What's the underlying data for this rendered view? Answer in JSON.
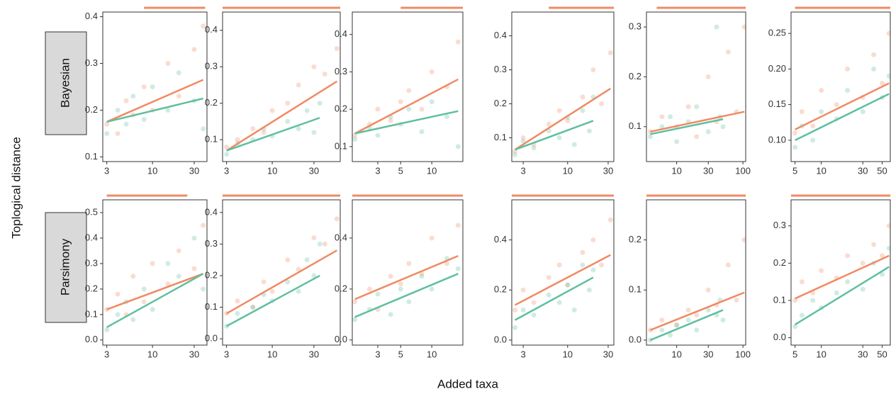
{
  "y_label": "Toplogical distance",
  "x_label": "Added taxa",
  "row_labels": [
    "Bayesian",
    "Parsimony"
  ],
  "chart_data": [
    {
      "type": "scatter",
      "log_x": true,
      "xlim": [
        2.7,
        42
      ],
      "ylim": [
        0.09,
        0.41
      ],
      "xticks": [
        3,
        10,
        30
      ],
      "yticks": [
        0.1,
        0.2,
        0.3,
        0.4
      ],
      "signif_range": [
        8,
        40
      ],
      "signif_color": "#f08a64",
      "series": [
        {
          "color": "#f08a64",
          "x": [
            3,
            4,
            5,
            6,
            8,
            10,
            15,
            20,
            30,
            38
          ],
          "values": [
            0.17,
            0.15,
            0.22,
            0.19,
            0.25,
            0.2,
            0.3,
            0.23,
            0.33,
            0.38
          ],
          "fit_x": [
            3,
            38
          ],
          "fit_values": [
            0.175,
            0.265
          ]
        },
        {
          "color": "#5fbf9f",
          "x": [
            3,
            4,
            5,
            6,
            8,
            10,
            15,
            20,
            30,
            38
          ],
          "values": [
            0.15,
            0.2,
            0.17,
            0.23,
            0.18,
            0.25,
            0.2,
            0.28,
            0.22,
            0.16
          ],
          "fit_x": [
            3,
            38
          ],
          "fit_values": [
            0.175,
            0.225
          ]
        }
      ]
    },
    {
      "type": "scatter",
      "log_x": true,
      "xlim": [
        2.7,
        60
      ],
      "ylim": [
        0.04,
        0.45
      ],
      "xticks": [
        3,
        10,
        30
      ],
      "yticks": [
        0.1,
        0.2,
        0.3,
        0.4
      ],
      "signif_range": [
        2.7,
        60
      ],
      "signif_color": "#f08a64",
      "series": [
        {
          "color": "#f08a64",
          "x": [
            3,
            4,
            6,
            8,
            10,
            15,
            20,
            30,
            40,
            55
          ],
          "values": [
            0.08,
            0.1,
            0.13,
            0.12,
            0.18,
            0.2,
            0.25,
            0.3,
            0.28,
            0.35
          ],
          "fit_x": [
            3,
            55
          ],
          "fit_values": [
            0.07,
            0.26
          ]
        },
        {
          "color": "#5fbf9f",
          "x": [
            3,
            4,
            6,
            8,
            10,
            15,
            20,
            25,
            30,
            35
          ],
          "values": [
            0.06,
            0.09,
            0.1,
            0.13,
            0.11,
            0.15,
            0.13,
            0.18,
            0.12,
            0.2
          ],
          "fit_x": [
            3,
            35
          ],
          "fit_values": [
            0.07,
            0.16
          ]
        }
      ]
    },
    {
      "type": "scatter",
      "log_x": true,
      "xlim": [
        1.7,
        20
      ],
      "ylim": [
        0.06,
        0.46
      ],
      "xticks": [
        3,
        5,
        10
      ],
      "yticks": [
        0.1,
        0.2,
        0.3,
        0.4
      ],
      "signif_range": [
        5,
        20
      ],
      "signif_color": "#f08a64",
      "series": [
        {
          "color": "#f08a64",
          "x": [
            1.8,
            2.5,
            3,
            4,
            5,
            6,
            8,
            10,
            14,
            18
          ],
          "values": [
            0.13,
            0.16,
            0.2,
            0.17,
            0.22,
            0.25,
            0.2,
            0.3,
            0.26,
            0.38
          ],
          "fit_x": [
            1.8,
            18
          ],
          "fit_values": [
            0.135,
            0.28
          ]
        },
        {
          "color": "#5fbf9f",
          "x": [
            1.8,
            2.5,
            3,
            4,
            5,
            6,
            8,
            10,
            14,
            18
          ],
          "values": [
            0.12,
            0.15,
            0.13,
            0.18,
            0.16,
            0.2,
            0.14,
            0.22,
            0.18,
            0.1
          ],
          "fit_x": [
            1.8,
            18
          ],
          "fit_values": [
            0.135,
            0.195
          ]
        }
      ]
    },
    {
      "type": "scatter",
      "log_x": true,
      "xlim": [
        2.2,
        35
      ],
      "ylim": [
        0.03,
        0.47
      ],
      "xticks": [
        3,
        10,
        30
      ],
      "yticks": [
        0.1,
        0.2,
        0.3,
        0.4
      ],
      "signif_range": [
        6,
        35
      ],
      "signif_color": "#f08a64",
      "series": [
        {
          "color": "#f08a64",
          "x": [
            2.4,
            3,
            4,
            6,
            8,
            10,
            15,
            20,
            25,
            32
          ],
          "values": [
            0.06,
            0.1,
            0.08,
            0.14,
            0.18,
            0.15,
            0.22,
            0.3,
            0.2,
            0.35
          ],
          "fit_x": [
            2.4,
            32
          ],
          "fit_values": [
            0.065,
            0.245
          ]
        },
        {
          "color": "#5fbf9f",
          "x": [
            2.4,
            3,
            4,
            6,
            8,
            10,
            12,
            15,
            18,
            20
          ],
          "values": [
            0.05,
            0.09,
            0.07,
            0.12,
            0.1,
            0.16,
            0.08,
            0.18,
            0.12,
            0.22
          ],
          "fit_x": [
            2.4,
            20
          ],
          "fit_values": [
            0.065,
            0.15
          ]
        }
      ]
    },
    {
      "type": "scatter",
      "log_x": true,
      "xlim": [
        3.5,
        110
      ],
      "ylim": [
        0.03,
        0.33
      ],
      "xticks": [
        10,
        30,
        100
      ],
      "yticks": [
        0.1,
        0.2,
        0.3
      ],
      "signif_range": [
        5,
        110
      ],
      "signif_color": "#f08a64",
      "series": [
        {
          "color": "#f08a64",
          "x": [
            4,
            6,
            10,
            15,
            20,
            30,
            40,
            60,
            80,
            105
          ],
          "values": [
            0.09,
            0.12,
            0.1,
            0.14,
            0.08,
            0.2,
            0.11,
            0.25,
            0.13,
            0.3
          ],
          "fit_x": [
            4,
            105
          ],
          "fit_values": [
            0.09,
            0.13
          ]
        },
        {
          "color": "#5fbf9f",
          "x": [
            4,
            6,
            8,
            10,
            15,
            20,
            30,
            40,
            45,
            50
          ],
          "values": [
            0.08,
            0.1,
            0.12,
            0.07,
            0.11,
            0.14,
            0.09,
            0.3,
            0.12,
            0.1
          ],
          "fit_x": [
            4,
            50
          ],
          "fit_values": [
            0.085,
            0.115
          ]
        }
      ]
    },
    {
      "type": "scatter",
      "log_x": true,
      "xlim": [
        4.5,
        62
      ],
      "ylim": [
        0.07,
        0.28
      ],
      "xticks": [
        5,
        10,
        30,
        50
      ],
      "yticks": [
        {
          "value": 0.1,
          "label": "0.10"
        },
        0.15,
        {
          "value": 0.2,
          "label": "0.20"
        },
        0.25
      ],
      "signif_range": [
        5,
        62
      ],
      "signif_color": "#f08a64",
      "series": [
        {
          "color": "#f08a64",
          "x": [
            5,
            6,
            8,
            10,
            15,
            20,
            30,
            40,
            50,
            60
          ],
          "values": [
            0.11,
            0.14,
            0.12,
            0.17,
            0.15,
            0.2,
            0.16,
            0.22,
            0.18,
            0.25
          ],
          "fit_x": [
            5,
            60
          ],
          "fit_values": [
            0.115,
            0.18
          ]
        },
        {
          "color": "#5fbf9f",
          "x": [
            5,
            6,
            8,
            10,
            15,
            20,
            30,
            40,
            50,
            60
          ],
          "values": [
            0.09,
            0.12,
            0.1,
            0.14,
            0.13,
            0.17,
            0.14,
            0.2,
            0.16,
            0.19
          ],
          "fit_x": [
            5,
            60
          ],
          "fit_values": [
            0.1,
            0.165
          ]
        }
      ]
    },
    {
      "type": "scatter",
      "log_x": true,
      "xlim": [
        2.7,
        42
      ],
      "ylim": [
        -0.02,
        0.55
      ],
      "xticks": [
        3,
        10,
        30
      ],
      "yticks": [
        {
          "value": 0,
          "label": "0.0"
        },
        0.1,
        0.2,
        0.3,
        0.4,
        0.5
      ],
      "signif_range": [
        3,
        25
      ],
      "signif_color": "#f08a64",
      "series": [
        {
          "color": "#f08a64",
          "x": [
            3,
            4,
            5,
            6,
            8,
            10,
            15,
            20,
            30,
            38
          ],
          "values": [
            0.12,
            0.18,
            0.1,
            0.25,
            0.15,
            0.3,
            0.22,
            0.35,
            0.28,
            0.45
          ],
          "fit_x": [
            3,
            38
          ],
          "fit_values": [
            0.12,
            0.26
          ]
        },
        {
          "color": "#5fbf9f",
          "x": [
            3,
            4,
            5,
            6,
            8,
            10,
            15,
            20,
            30,
            38
          ],
          "values": [
            0.04,
            0.1,
            0.15,
            0.08,
            0.2,
            0.12,
            0.3,
            0.25,
            0.4,
            0.2
          ],
          "fit_x": [
            3,
            38
          ],
          "fit_values": [
            0.05,
            0.26
          ]
        }
      ]
    },
    {
      "type": "scatter",
      "log_x": true,
      "xlim": [
        2.7,
        60
      ],
      "ylim": [
        -0.02,
        0.44
      ],
      "xticks": [
        3,
        10,
        30
      ],
      "yticks": [
        {
          "value": 0,
          "label": "0.0"
        },
        0.1,
        0.2,
        0.3,
        0.4
      ],
      "signif_range": [
        2.7,
        60
      ],
      "signif_color": "#f08a64",
      "series": [
        {
          "color": "#f08a64",
          "x": [
            3,
            4,
            6,
            8,
            10,
            15,
            20,
            30,
            40,
            55
          ],
          "values": [
            0.08,
            0.12,
            0.1,
            0.18,
            0.15,
            0.25,
            0.22,
            0.32,
            0.3,
            0.38
          ],
          "fit_x": [
            3,
            55
          ],
          "fit_values": [
            0.08,
            0.28
          ]
        },
        {
          "color": "#5fbf9f",
          "x": [
            3,
            4,
            6,
            8,
            10,
            15,
            20,
            25,
            30,
            35
          ],
          "values": [
            0.04,
            0.08,
            0.1,
            0.14,
            0.12,
            0.18,
            0.15,
            0.25,
            0.2,
            0.3
          ],
          "fit_x": [
            3,
            35
          ],
          "fit_values": [
            0.04,
            0.2
          ]
        }
      ]
    },
    {
      "type": "scatter",
      "log_x": true,
      "xlim": [
        1.7,
        20
      ],
      "ylim": [
        -0.02,
        0.55
      ],
      "xticks": [
        3,
        5,
        10
      ],
      "yticks": [
        {
          "value": 0,
          "label": "0.0"
        },
        0.2,
        0.4
      ],
      "signif_range": [
        1.7,
        20
      ],
      "signif_color": "#f08a64",
      "series": [
        {
          "color": "#f08a64",
          "x": [
            1.8,
            2.5,
            3,
            4,
            5,
            6,
            8,
            10,
            14,
            18
          ],
          "values": [
            0.15,
            0.2,
            0.12,
            0.25,
            0.22,
            0.3,
            0.26,
            0.4,
            0.3,
            0.45
          ],
          "fit_x": [
            1.8,
            18
          ],
          "fit_values": [
            0.16,
            0.33
          ]
        },
        {
          "color": "#5fbf9f",
          "x": [
            1.8,
            2.5,
            3,
            4,
            5,
            6,
            8,
            10,
            14,
            18
          ],
          "values": [
            0.08,
            0.12,
            0.18,
            0.1,
            0.2,
            0.15,
            0.25,
            0.2,
            0.32,
            0.28
          ],
          "fit_x": [
            1.8,
            18
          ],
          "fit_values": [
            0.09,
            0.26
          ]
        }
      ]
    },
    {
      "type": "scatter",
      "log_x": true,
      "xlim": [
        2.2,
        35
      ],
      "ylim": [
        -0.02,
        0.56
      ],
      "xticks": [
        3,
        10,
        30
      ],
      "yticks": [
        {
          "value": 0,
          "label": "0.0"
        },
        0.2,
        0.4
      ],
      "signif_range": [
        2.2,
        35
      ],
      "signif_color": "#f08a64",
      "series": [
        {
          "color": "#f08a64",
          "x": [
            2.4,
            3,
            4,
            6,
            8,
            10,
            15,
            20,
            25,
            32
          ],
          "values": [
            0.12,
            0.2,
            0.15,
            0.25,
            0.3,
            0.22,
            0.35,
            0.4,
            0.3,
            0.48
          ],
          "fit_x": [
            2.4,
            32
          ],
          "fit_values": [
            0.14,
            0.34
          ]
        },
        {
          "color": "#5fbf9f",
          "x": [
            2.4,
            3,
            4,
            6,
            8,
            10,
            12,
            15,
            18,
            20
          ],
          "values": [
            0.05,
            0.12,
            0.1,
            0.18,
            0.15,
            0.22,
            0.12,
            0.3,
            0.2,
            0.28
          ],
          "fit_x": [
            2.4,
            20
          ],
          "fit_values": [
            0.08,
            0.25
          ]
        }
      ]
    },
    {
      "type": "scatter",
      "log_x": true,
      "xlim": [
        3.5,
        110
      ],
      "ylim": [
        -0.01,
        0.28
      ],
      "xticks": [
        10,
        30,
        100
      ],
      "yticks": [
        {
          "value": 0,
          "label": "0.0"
        },
        0.1,
        0.2
      ],
      "signif_range": [
        3.5,
        110
      ],
      "signif_color": "#f08a64",
      "series": [
        {
          "color": "#f08a64",
          "x": [
            4,
            6,
            10,
            15,
            20,
            30,
            40,
            60,
            80,
            105
          ],
          "values": [
            0.02,
            0.04,
            0.03,
            0.06,
            0.05,
            0.1,
            0.07,
            0.15,
            0.08,
            0.2
          ],
          "fit_x": [
            4,
            105
          ],
          "fit_values": [
            0.02,
            0.095
          ]
        },
        {
          "color": "#5fbf9f",
          "x": [
            4,
            6,
            8,
            10,
            15,
            20,
            30,
            40,
            45,
            50
          ],
          "values": [
            0,
            0.02,
            0.01,
            0.03,
            0.04,
            0.02,
            0.06,
            0.05,
            0.08,
            0.04
          ],
          "fit_x": [
            4,
            50
          ],
          "fit_values": [
            0,
            0.06
          ]
        }
      ]
    },
    {
      "type": "scatter",
      "log_x": true,
      "xlim": [
        4.5,
        62
      ],
      "ylim": [
        -0.02,
        0.37
      ],
      "xticks": [
        5,
        10,
        30,
        50
      ],
      "yticks": [
        {
          "value": 0,
          "label": "0.0"
        },
        0.1,
        0.2,
        0.3
      ],
      "signif_range": [
        4.5,
        62
      ],
      "signif_color": "#f08a64",
      "series": [
        {
          "color": "#f08a64",
          "x": [
            5,
            6,
            8,
            10,
            15,
            20,
            30,
            40,
            50,
            60
          ],
          "values": [
            0.1,
            0.15,
            0.12,
            0.18,
            0.16,
            0.22,
            0.2,
            0.25,
            0.22,
            0.3
          ],
          "fit_x": [
            5,
            60
          ],
          "fit_values": [
            0.105,
            0.22
          ]
        },
        {
          "color": "#5fbf9f",
          "x": [
            5,
            6,
            8,
            10,
            15,
            20,
            30,
            40,
            50,
            60
          ],
          "values": [
            0.03,
            0.06,
            0.1,
            0.08,
            0.12,
            0.15,
            0.13,
            0.2,
            0.17,
            0.24
          ],
          "fit_x": [
            5,
            60
          ],
          "fit_values": [
            0.035,
            0.19
          ]
        }
      ]
    }
  ]
}
